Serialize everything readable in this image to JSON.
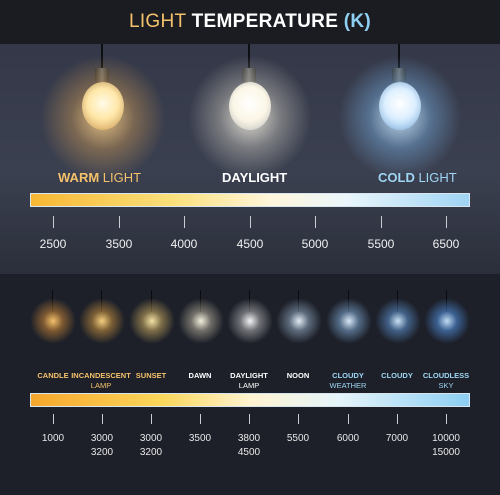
{
  "title": {
    "part1": "LIGHT",
    "part2": "TEMPERATURE",
    "part3": "(K)"
  },
  "colors": {
    "warm": "#f5c26b",
    "white": "#ffffff",
    "cold": "#8fd0f2"
  },
  "top": {
    "labels": [
      {
        "strong": "WARM",
        "rest": " LIGHT",
        "color": "#f5c26b"
      },
      {
        "strong": "DAYLIGHT",
        "rest": "",
        "color": "#ffffff"
      },
      {
        "strong": "COLD",
        "rest": " LIGHT",
        "color": "#9fd6f4"
      }
    ],
    "ticks": [
      "2500",
      "3500",
      "4000",
      "4500",
      "5000",
      "5500",
      "6500"
    ]
  },
  "bottom": {
    "labels": [
      {
        "l1": "CANDLE",
        "l2": "",
        "color": "#f5c26b"
      },
      {
        "l1": "INCANDESCENT",
        "l2": "LAMP",
        "color": "#f5c26b"
      },
      {
        "l1": "SUNSET",
        "l2": "",
        "color": "#f5c26b"
      },
      {
        "l1": "DAWN",
        "l2": "",
        "color": "#ffffff"
      },
      {
        "l1": "DAYLIGHT",
        "l2": "LAMP",
        "color": "#ffffff"
      },
      {
        "l1": "NOON",
        "l2": "",
        "color": "#ffffff"
      },
      {
        "l1": "CLOUDY",
        "l2": "WEATHER",
        "color": "#9fd6f4"
      },
      {
        "l1": "CLOUDY",
        "l2": "",
        "color": "#9fd6f4"
      },
      {
        "l1": "CLOUDLESS",
        "l2": "SKY",
        "color": "#9fd6f4"
      }
    ],
    "ticks": [
      {
        "v1": "1000",
        "v2": ""
      },
      {
        "v1": "3000",
        "v2": "3200"
      },
      {
        "v1": "3000",
        "v2": "3200"
      },
      {
        "v1": "3500",
        "v2": ""
      },
      {
        "v1": "3800",
        "v2": "4500"
      },
      {
        "v1": "5500",
        "v2": ""
      },
      {
        "v1": "6000",
        "v2": ""
      },
      {
        "v1": "7000",
        "v2": ""
      },
      {
        "v1": "10000",
        "v2": "15000"
      }
    ]
  }
}
